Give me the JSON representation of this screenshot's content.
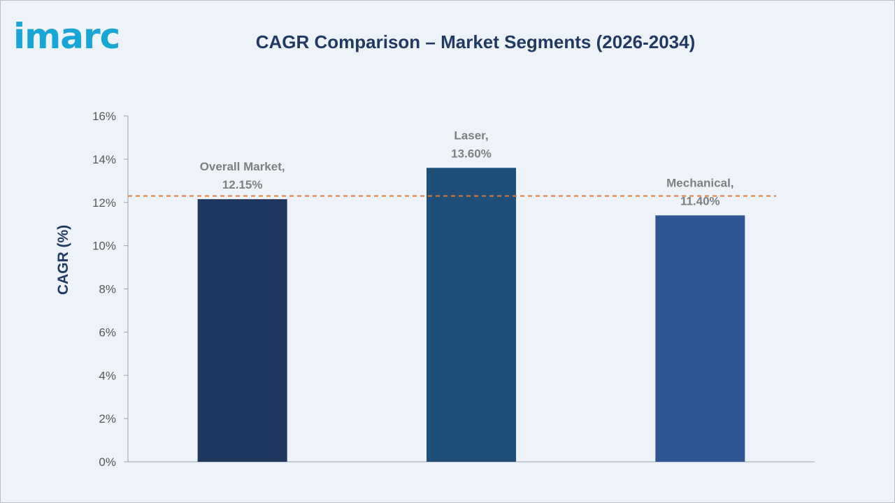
{
  "header": {
    "logo_text": "imarc",
    "title": "CAGR Comparison – Market Segments (2026-2034)"
  },
  "chart_data": {
    "type": "bar",
    "title": "CAGR Comparison – Market Segments (2026-2034)",
    "ylabel": "CAGR (%)",
    "xlabel": "",
    "ylim": [
      0,
      16
    ],
    "yticks": [
      0,
      2,
      4,
      6,
      8,
      10,
      12,
      14,
      16
    ],
    "ytick_labels": [
      "0%",
      "2%",
      "4%",
      "6%",
      "8%",
      "10%",
      "12%",
      "14%",
      "16%"
    ],
    "categories": [
      "Overall Market",
      "Laser",
      "Mechanical"
    ],
    "values": [
      12.15,
      13.6,
      11.4
    ],
    "data_labels": [
      [
        "Overall Market,",
        "12.15%"
      ],
      [
        "Laser,",
        "13.60%"
      ],
      [
        "Mechanical,",
        "11.40%"
      ]
    ],
    "colors": [
      "#1f365e",
      "#1f4e79",
      "#2e5594"
    ],
    "reference_line": {
      "value": 12.3,
      "color": "#e07b39",
      "style": "dashed"
    },
    "grid": false,
    "legend": "none"
  }
}
